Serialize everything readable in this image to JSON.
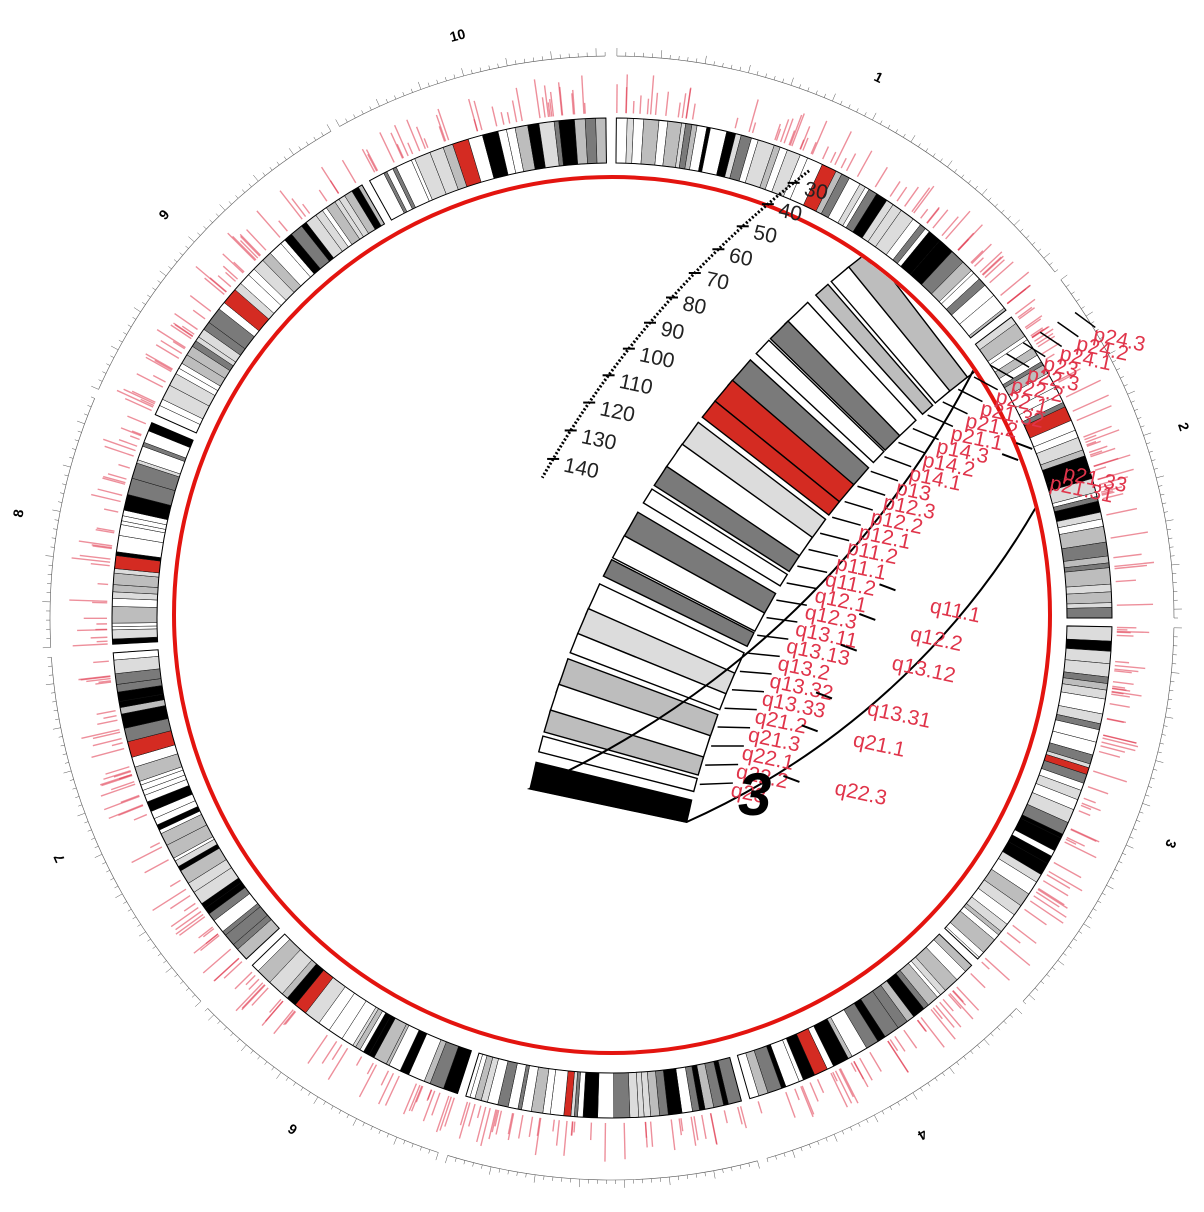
{
  "diagram": {
    "type": "circular-ideogram",
    "colors": {
      "gpos100": "#000000",
      "gpos75": "#7a7a7a",
      "gpos50": "#bdbdbd",
      "gpos25": "#dcdcdc",
      "gneg": "#ffffff",
      "highlight": "#d42b22",
      "label": "#e0344a",
      "focus_ring": "#e3140f"
    },
    "outer_ring": {
      "chromosomes": [
        {
          "name": "1",
          "highlights": 1
        },
        {
          "name": "2",
          "highlights": 1
        },
        {
          "name": "3",
          "highlights": 1
        },
        {
          "name": "4",
          "highlights": 1
        },
        {
          "name": "5",
          "highlights": 1
        },
        {
          "name": "6",
          "highlights": 1
        },
        {
          "name": "7",
          "highlights": 1
        },
        {
          "name": "8",
          "highlights": 1
        },
        {
          "name": "9",
          "highlights": 1
        },
        {
          "name": "10",
          "highlights": 1
        }
      ]
    },
    "zoom": {
      "chromosome": "3",
      "bands_p": [
        "p24.3",
        "p24.2",
        "p24.1",
        "p23",
        "p22.3",
        "p22.2",
        "p22.1",
        "p21.32",
        "p21.2",
        "p21.1",
        "p14.3",
        "p14.2",
        "p14.1",
        "p13",
        "p12.3",
        "p12.2",
        "p12.1",
        "p11.2",
        "p11.1"
      ],
      "bands_q": [
        "q11.2",
        "q12.1",
        "q12.3",
        "q13.11",
        "q13.13",
        "q13.2",
        "q13.32",
        "q13.33",
        "q21.2",
        "q21.3",
        "q22.1",
        "q22.2",
        "q23"
      ],
      "offset_labels": [
        "p21.33",
        "p21.31",
        "q11.1",
        "q12.2",
        "q13.12",
        "q13.31",
        "q21.1",
        "q22.3"
      ],
      "scale_values": [
        "30",
        "40",
        "50",
        "60",
        "70",
        "80",
        "90",
        "100",
        "110",
        "120",
        "130",
        "140"
      ]
    }
  }
}
